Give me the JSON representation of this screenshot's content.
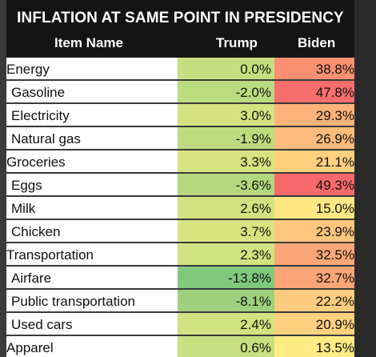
{
  "chart_data": {
    "type": "table",
    "title": "INFLATION AT SAME POINT IN PRESIDENCY",
    "columns": [
      "Item Name",
      "Trump",
      "Biden"
    ],
    "rows": [
      {
        "name": "Energy",
        "indent": false,
        "trump": "0.0%",
        "biden": "38.8%",
        "trump_value": 0.0,
        "biden_value": 38.8
      },
      {
        "name": "Gasoline",
        "indent": true,
        "trump": "-2.0%",
        "biden": "47.8%",
        "trump_value": -2.0,
        "biden_value": 47.8
      },
      {
        "name": "Electricity",
        "indent": true,
        "trump": "3.0%",
        "biden": "29.3%",
        "trump_value": 3.0,
        "biden_value": 29.3
      },
      {
        "name": "Natural gas",
        "indent": true,
        "trump": "-1.9%",
        "biden": "26.9%",
        "trump_value": -1.9,
        "biden_value": 26.9
      },
      {
        "name": "Groceries",
        "indent": false,
        "trump": "3.3%",
        "biden": "21.1%",
        "trump_value": 3.3,
        "biden_value": 21.1
      },
      {
        "name": "Eggs",
        "indent": true,
        "trump": "-3.6%",
        "biden": "49.3%",
        "trump_value": -3.6,
        "biden_value": 49.3
      },
      {
        "name": "Milk",
        "indent": true,
        "trump": "2.6%",
        "biden": "15.0%",
        "trump_value": 2.6,
        "biden_value": 15.0
      },
      {
        "name": "Chicken",
        "indent": true,
        "trump": "3.7%",
        "biden": "23.9%",
        "trump_value": 3.7,
        "biden_value": 23.9
      },
      {
        "name": "Transportation",
        "indent": false,
        "trump": "2.3%",
        "biden": "32.5%",
        "trump_value": 2.3,
        "biden_value": 32.5
      },
      {
        "name": "Airfare",
        "indent": true,
        "trump": "-13.8%",
        "biden": "32.7%",
        "trump_value": -13.8,
        "biden_value": 32.7
      },
      {
        "name": "Public transportation",
        "indent": true,
        "trump": "-8.1%",
        "biden": "22.2%",
        "trump_value": -8.1,
        "biden_value": 22.2
      },
      {
        "name": "Used cars",
        "indent": true,
        "trump": "2.4%",
        "biden": "20.9%",
        "trump_value": 2.4,
        "biden_value": 20.9
      },
      {
        "name": "Apparel",
        "indent": false,
        "trump": "0.6%",
        "biden": "13.5%",
        "trump_value": 0.6,
        "biden_value": 13.5
      }
    ],
    "color_scale": {
      "low": "#63be7b",
      "mid": "#ffeb84",
      "high": "#f8696b"
    }
  }
}
